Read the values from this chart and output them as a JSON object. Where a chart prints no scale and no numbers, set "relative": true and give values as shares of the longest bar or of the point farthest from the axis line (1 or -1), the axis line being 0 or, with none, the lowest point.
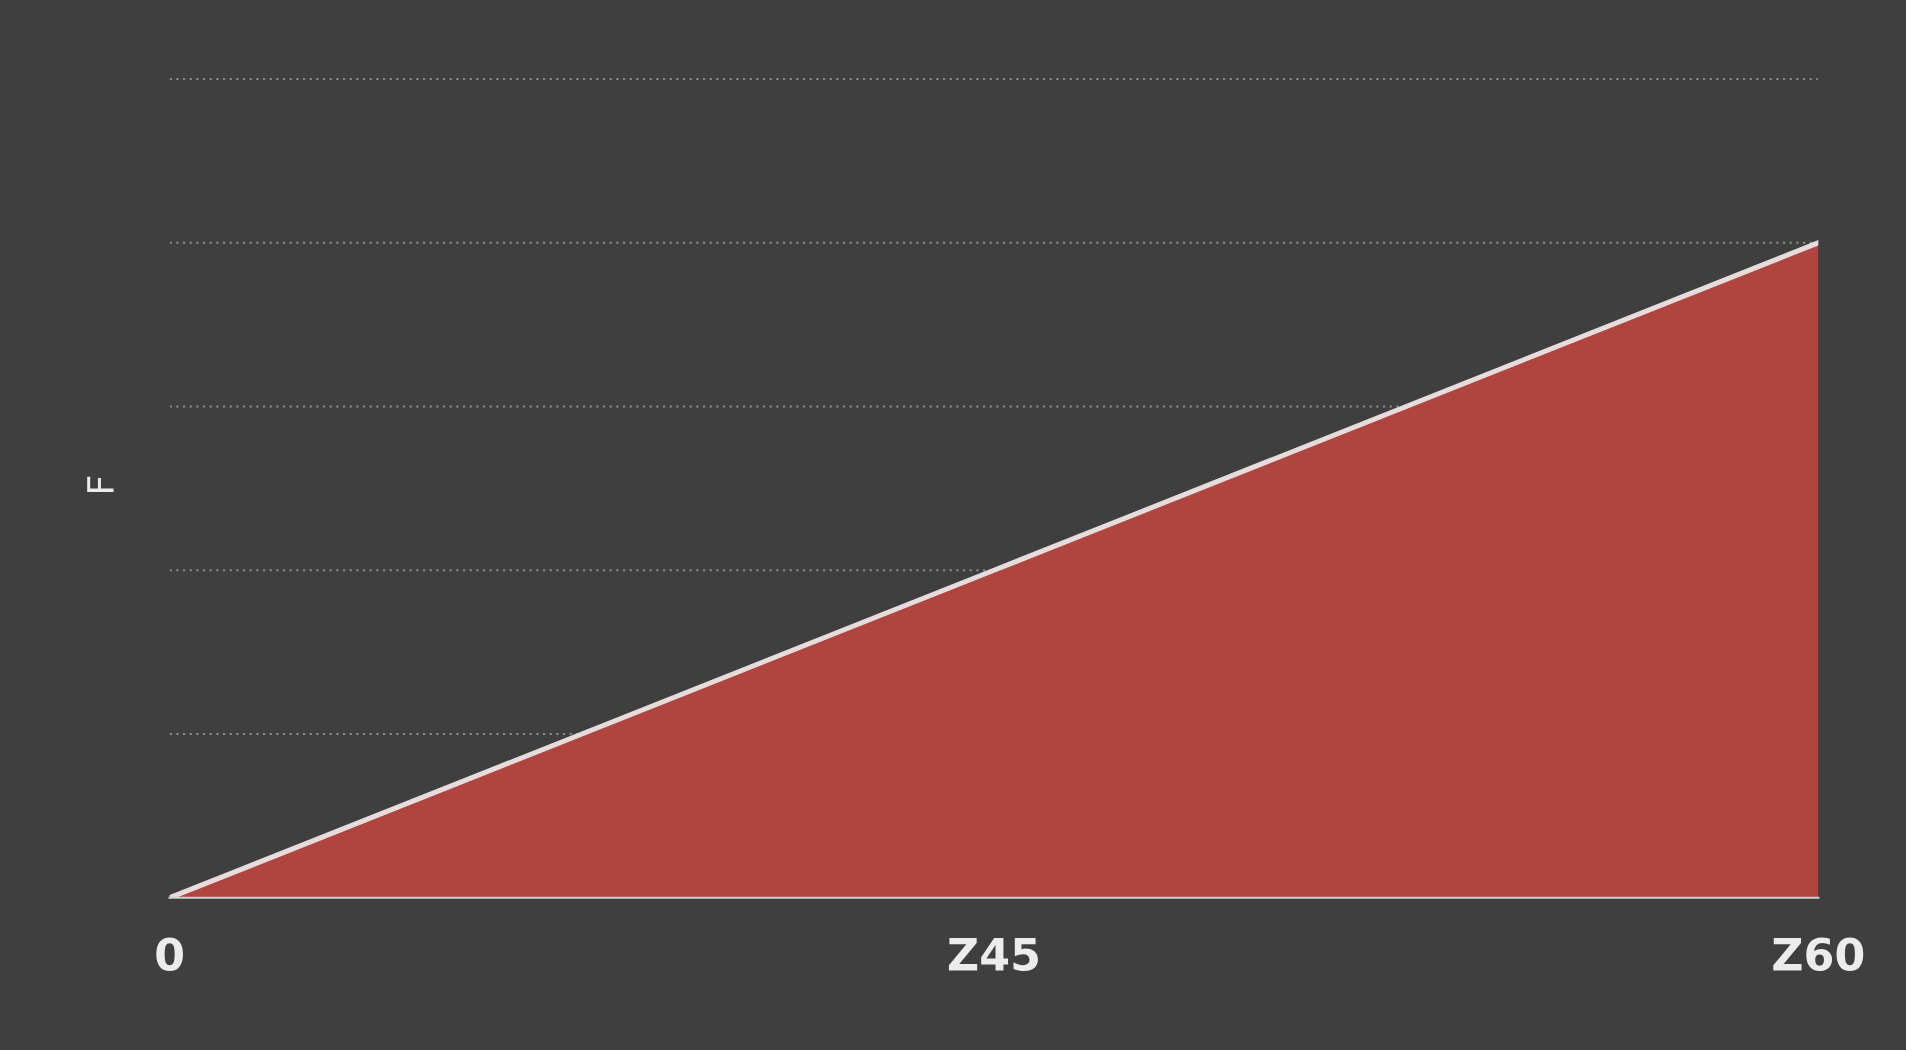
{
  "chart_data": {
    "type": "area",
    "relative": true,
    "ylabel": "F",
    "categories": [
      "0",
      "Z45",
      "Z60"
    ],
    "series": [
      {
        "color": "#b0443f",
        "values": [
          0,
          0.5,
          1
        ]
      }
    ],
    "grid": "y"
  }
}
